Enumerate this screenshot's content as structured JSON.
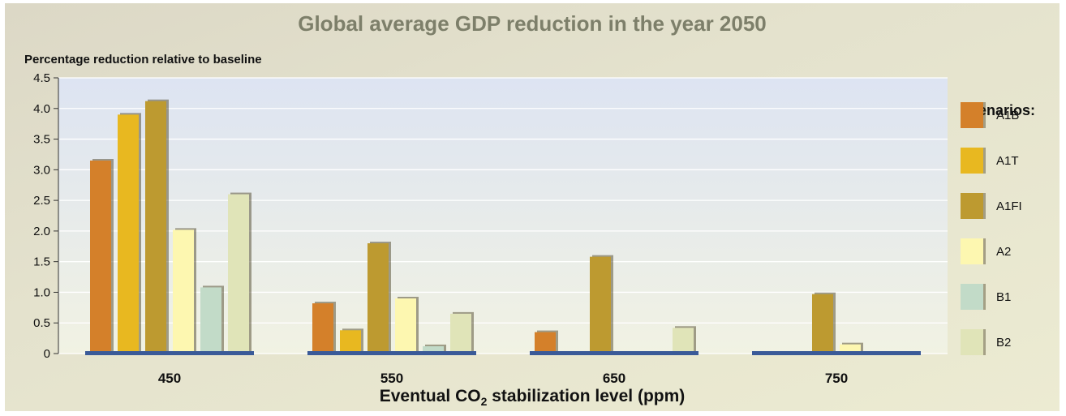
{
  "chart_data": {
    "type": "bar",
    "title": "Global average GDP reduction in the year 2050",
    "ylabel": "Percentage reduction relative to baseline",
    "xlabel_pre": "Eventual CO",
    "xlabel_sub": "2",
    "xlabel_post": " stabilization level (ppm)",
    "categories": [
      "450",
      "550",
      "650",
      "750"
    ],
    "ylim": [
      0,
      4.5
    ],
    "yticks": [
      "0",
      "0.5",
      "1.0",
      "1.5",
      "2.0",
      "2.5",
      "3.0",
      "3.5",
      "4.0",
      "4.5"
    ],
    "grid": true,
    "legend_title": "Scenarios:",
    "legend_position": "right",
    "series": [
      {
        "name": "A1B",
        "color": "#d4802a",
        "values": [
          3.15,
          0.82,
          0.35,
          0.0
        ]
      },
      {
        "name": "A1T",
        "color": "#e8b820",
        "values": [
          3.9,
          0.38,
          0.0,
          0.0
        ]
      },
      {
        "name": "A1FI",
        "color": "#bd9a30",
        "values": [
          4.12,
          1.8,
          1.58,
          0.97
        ]
      },
      {
        "name": "A2",
        "color": "#fdf7b0",
        "values": [
          2.02,
          0.9,
          0.0,
          0.15
        ]
      },
      {
        "name": "B1",
        "color": "#c2dbc8",
        "values": [
          1.08,
          0.12,
          0.0,
          0.0
        ]
      },
      {
        "name": "B2",
        "color": "#e0e4b8",
        "values": [
          2.6,
          0.65,
          0.42,
          0.0
        ]
      }
    ],
    "baseline_color": "#3a5a98"
  }
}
